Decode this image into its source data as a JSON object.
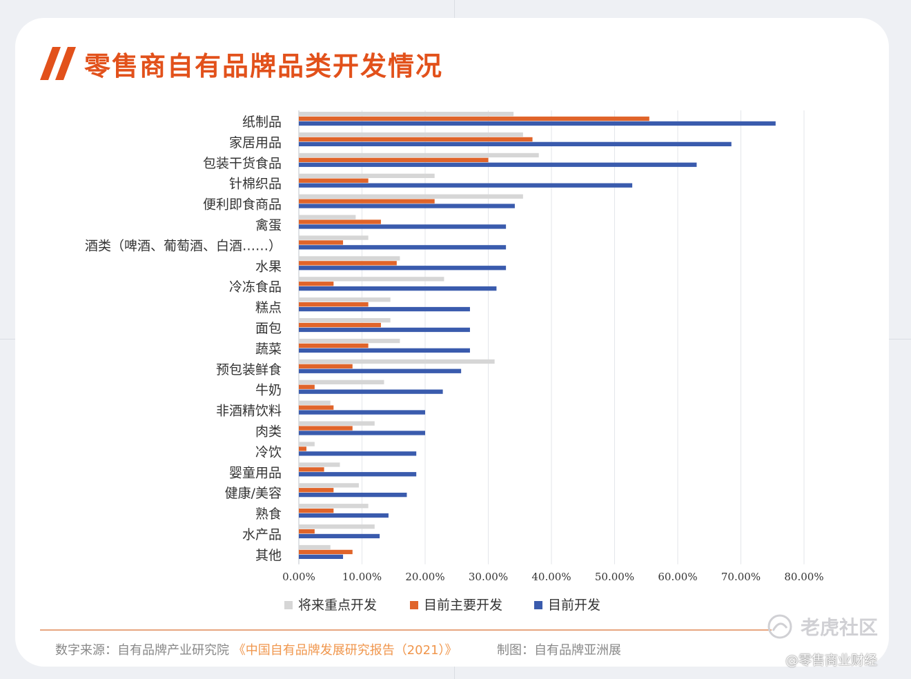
{
  "title": "零售商自有品牌品类开发情况",
  "chart_data": {
    "type": "bar",
    "orientation": "horizontal",
    "title": "零售商自有品牌品类开发情况",
    "categories": [
      "纸制品",
      "家居用品",
      "包装干货食品",
      "针棉织品",
      "便利即食商品",
      "禽蛋",
      "酒类（啤酒、葡萄酒、白酒……）",
      "水果",
      "冷冻食品",
      "糕点",
      "面包",
      "蔬菜",
      "预包装鲜食",
      "牛奶",
      "非酒精饮料",
      "肉类",
      "冷饮",
      "婴童用品",
      "健康/美容",
      "熟食",
      "水产品",
      "其他"
    ],
    "series": [
      {
        "name": "将来重点开发",
        "color": "#d6d6d6",
        "values": [
          34,
          35.5,
          38,
          21.5,
          35.5,
          9,
          11,
          16,
          23,
          14.5,
          14.5,
          16,
          31,
          13.5,
          5,
          12,
          2.5,
          6.5,
          9.5,
          11,
          12,
          5
        ]
      },
      {
        "name": "目前主要开发",
        "color": "#e0642a",
        "values": [
          55.5,
          37,
          30,
          11,
          21.5,
          13,
          7,
          15.5,
          5.5,
          11,
          13,
          11,
          8.5,
          2.5,
          5.5,
          8.5,
          1.2,
          4,
          5.5,
          5.5,
          2.5,
          8.5
        ]
      },
      {
        "name": "目前开发",
        "color": "#3a5bad",
        "values": [
          75.5,
          68.5,
          63,
          52.8,
          34.2,
          32.8,
          32.8,
          32.8,
          31.3,
          27.1,
          27.1,
          27.1,
          25.7,
          22.8,
          20,
          20,
          18.6,
          18.6,
          17.1,
          14.2,
          12.8,
          7
        ]
      }
    ],
    "x_ticks": [
      "0.00%",
      "10.00%",
      "20.00%",
      "30.00%",
      "40.00%",
      "50.00%",
      "60.00%",
      "70.00%",
      "80.00%"
    ],
    "xlim": [
      0,
      80
    ],
    "grid": true,
    "legend": "bottom"
  },
  "footer": {
    "source_label": "数字来源：自有品牌产业研究院",
    "report": "《中国自有品牌发展研究报告（2021）》",
    "maker": "制图：自有品牌亚洲展"
  },
  "watermark": {
    "community": "老虎社区",
    "author": "@零售商业财经"
  }
}
